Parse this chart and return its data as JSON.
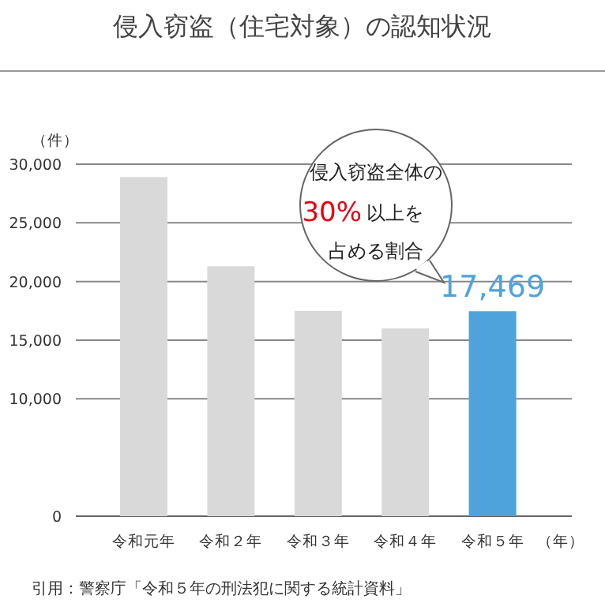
{
  "chart_data": {
    "type": "bar",
    "title": "侵入窃盗（住宅対象）の認知状況",
    "ylabel": "（件）",
    "xlabel": "（年）",
    "categories": [
      "令和元年",
      "令和２年",
      "令和３年",
      "令和４年",
      "令和５年"
    ],
    "values": [
      28900,
      21300,
      17500,
      16000,
      17469
    ],
    "colors": [
      "#d9d9d9",
      "#d9d9d9",
      "#d9d9d9",
      "#d9d9d9",
      "#4fa3dc"
    ],
    "value_labels": [
      null,
      null,
      null,
      null,
      "17,469"
    ],
    "ylim": [
      0,
      30000
    ],
    "yticks": [
      {
        "value": 0,
        "label": "0"
      },
      {
        "value": 10000,
        "label": "10,000"
      },
      {
        "value": 15000,
        "label": "15,000"
      },
      {
        "value": 20000,
        "label": "20,000"
      },
      {
        "value": 25000,
        "label": "25,000"
      },
      {
        "value": 30000,
        "label": "30,000"
      }
    ],
    "grid": "y",
    "annotations": [
      "侵入窃盗全体の",
      "30%",
      "以上を",
      "占める割合",
      "引用：警察庁「令和５年の刑法犯に関する統計資料」"
    ]
  }
}
